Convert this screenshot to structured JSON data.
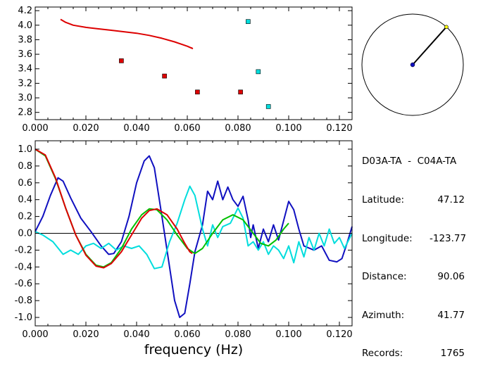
{
  "chart_data": [
    {
      "type": "scatter",
      "title": "",
      "xlabel": "",
      "ylabel": "",
      "xlim": [
        0.0,
        0.125
      ],
      "ylim": [
        2.7,
        4.25
      ],
      "x_ticks": [
        "0.000",
        "0.020",
        "0.040",
        "0.060",
        "0.080",
        "0.100",
        "0.120"
      ],
      "y_ticks": [
        "2.8",
        "3.0",
        "3.2",
        "3.4",
        "3.6",
        "3.8",
        "4.0",
        "4.2"
      ],
      "x_tick_values": [
        0,
        0.02,
        0.04,
        0.06,
        0.08,
        0.1,
        0.12
      ],
      "y_tick_values": [
        2.8,
        3.0,
        3.2,
        3.4,
        3.6,
        3.8,
        4.0,
        4.2
      ],
      "series": [
        {
          "type": "line",
          "color": "#dd0000",
          "points": [
            [
              0.01,
              4.08
            ],
            [
              0.012,
              4.04
            ],
            [
              0.015,
              4.0
            ],
            [
              0.02,
              3.97
            ],
            [
              0.025,
              3.95
            ],
            [
              0.03,
              3.93
            ],
            [
              0.035,
              3.91
            ],
            [
              0.04,
              3.89
            ],
            [
              0.045,
              3.86
            ],
            [
              0.05,
              3.82
            ],
            [
              0.055,
              3.77
            ],
            [
              0.06,
              3.71
            ],
            [
              0.062,
              3.68
            ],
            [
              0.0615,
              3.69
            ]
          ]
        },
        {
          "type": "scatter",
          "color": "#dd0000",
          "points": [
            [
              0.034,
              3.51
            ],
            [
              0.051,
              3.3
            ],
            [
              0.064,
              3.08
            ],
            [
              0.081,
              3.08
            ]
          ]
        },
        {
          "type": "scatter",
          "color": "#00dddd",
          "points": [
            [
              0.084,
              4.05
            ],
            [
              0.088,
              3.36
            ],
            [
              0.092,
              2.88
            ]
          ]
        }
      ]
    },
    {
      "type": "line",
      "title": "",
      "xlabel": "frequency (Hz)",
      "ylabel": "",
      "xlim": [
        0.0,
        0.125
      ],
      "ylim": [
        -1.1,
        1.1
      ],
      "x_ticks": [
        "0.000",
        "0.020",
        "0.040",
        "0.060",
        "0.080",
        "0.100",
        "0.120"
      ],
      "y_ticks": [
        "1.0",
        "0.8",
        "0.6",
        "0.4",
        "0.2",
        "0.0",
        "-0.2",
        "-0.4",
        "-0.6",
        "-0.8",
        "-1.0"
      ],
      "x_tick_values": [
        0,
        0.02,
        0.04,
        0.06,
        0.08,
        0.1,
        0.12
      ],
      "y_tick_values": [
        1.0,
        0.8,
        0.6,
        0.4,
        0.2,
        0.0,
        -0.2,
        -0.4,
        -0.6,
        -0.8,
        -1.0
      ],
      "zero_line": true,
      "series": [
        {
          "color": "#1010c0",
          "points": [
            [
              0.0,
              0.02
            ],
            [
              0.003,
              0.2
            ],
            [
              0.006,
              0.45
            ],
            [
              0.009,
              0.66
            ],
            [
              0.011,
              0.62
            ],
            [
              0.014,
              0.42
            ],
            [
              0.018,
              0.18
            ],
            [
              0.022,
              0.02
            ],
            [
              0.026,
              -0.15
            ],
            [
              0.029,
              -0.25
            ],
            [
              0.031,
              -0.24
            ],
            [
              0.034,
              -0.1
            ],
            [
              0.037,
              0.2
            ],
            [
              0.04,
              0.6
            ],
            [
              0.043,
              0.86
            ],
            [
              0.045,
              0.92
            ],
            [
              0.047,
              0.78
            ],
            [
              0.05,
              0.2
            ],
            [
              0.053,
              -0.4
            ],
            [
              0.055,
              -0.8
            ],
            [
              0.057,
              -1.0
            ],
            [
              0.059,
              -0.95
            ],
            [
              0.061,
              -0.6
            ],
            [
              0.063,
              -0.22
            ],
            [
              0.066,
              0.1
            ],
            [
              0.068,
              0.5
            ],
            [
              0.07,
              0.4
            ],
            [
              0.072,
              0.62
            ],
            [
              0.074,
              0.4
            ],
            [
              0.076,
              0.55
            ],
            [
              0.078,
              0.4
            ],
            [
              0.08,
              0.32
            ],
            [
              0.082,
              0.44
            ],
            [
              0.084,
              0.16
            ],
            [
              0.085,
              -0.05
            ],
            [
              0.086,
              0.1
            ],
            [
              0.088,
              -0.18
            ],
            [
              0.09,
              0.05
            ],
            [
              0.092,
              -0.1
            ],
            [
              0.094,
              0.1
            ],
            [
              0.096,
              -0.08
            ],
            [
              0.098,
              0.15
            ],
            [
              0.1,
              0.38
            ],
            [
              0.102,
              0.28
            ],
            [
              0.104,
              0.05
            ],
            [
              0.106,
              -0.15
            ],
            [
              0.11,
              -0.2
            ],
            [
              0.113,
              -0.15
            ],
            [
              0.116,
              -0.32
            ],
            [
              0.119,
              -0.34
            ],
            [
              0.121,
              -0.3
            ],
            [
              0.123,
              -0.12
            ],
            [
              0.125,
              0.08
            ]
          ]
        },
        {
          "color": "#00dddd",
          "points": [
            [
              0.0,
              0.02
            ],
            [
              0.003,
              -0.02
            ],
            [
              0.007,
              -0.1
            ],
            [
              0.011,
              -0.25
            ],
            [
              0.014,
              -0.2
            ],
            [
              0.017,
              -0.25
            ],
            [
              0.02,
              -0.15
            ],
            [
              0.023,
              -0.12
            ],
            [
              0.026,
              -0.18
            ],
            [
              0.029,
              -0.12
            ],
            [
              0.032,
              -0.2
            ],
            [
              0.035,
              -0.15
            ],
            [
              0.038,
              -0.18
            ],
            [
              0.041,
              -0.15
            ],
            [
              0.044,
              -0.25
            ],
            [
              0.047,
              -0.42
            ],
            [
              0.05,
              -0.4
            ],
            [
              0.053,
              -0.1
            ],
            [
              0.056,
              0.12
            ],
            [
              0.059,
              0.4
            ],
            [
              0.061,
              0.56
            ],
            [
              0.063,
              0.45
            ],
            [
              0.066,
              0.05
            ],
            [
              0.068,
              -0.15
            ],
            [
              0.07,
              0.1
            ],
            [
              0.072,
              -0.05
            ],
            [
              0.074,
              0.08
            ],
            [
              0.077,
              0.12
            ],
            [
              0.08,
              0.3
            ],
            [
              0.082,
              0.18
            ],
            [
              0.084,
              -0.15
            ],
            [
              0.086,
              -0.1
            ],
            [
              0.088,
              -0.2
            ],
            [
              0.09,
              -0.1
            ],
            [
              0.092,
              -0.25
            ],
            [
              0.094,
              -0.15
            ],
            [
              0.096,
              -0.2
            ],
            [
              0.098,
              -0.3
            ],
            [
              0.1,
              -0.15
            ],
            [
              0.102,
              -0.35
            ],
            [
              0.104,
              -0.1
            ],
            [
              0.106,
              -0.28
            ],
            [
              0.108,
              -0.05
            ],
            [
              0.11,
              -0.2
            ],
            [
              0.112,
              0.0
            ],
            [
              0.114,
              -0.15
            ],
            [
              0.116,
              0.05
            ],
            [
              0.118,
              -0.12
            ],
            [
              0.12,
              -0.05
            ],
            [
              0.122,
              -0.18
            ],
            [
              0.125,
              0.0
            ]
          ]
        },
        {
          "color": "#00c000",
          "points": [
            [
              0.0,
              1.0
            ],
            [
              0.004,
              0.92
            ],
            [
              0.008,
              0.65
            ],
            [
              0.012,
              0.3
            ],
            [
              0.016,
              -0.02
            ],
            [
              0.02,
              -0.25
            ],
            [
              0.024,
              -0.38
            ],
            [
              0.027,
              -0.4
            ],
            [
              0.03,
              -0.35
            ],
            [
              0.034,
              -0.18
            ],
            [
              0.038,
              0.05
            ],
            [
              0.042,
              0.22
            ],
            [
              0.045,
              0.29
            ],
            [
              0.048,
              0.28
            ],
            [
              0.052,
              0.16
            ],
            [
              0.056,
              -0.02
            ],
            [
              0.06,
              -0.18
            ],
            [
              0.063,
              -0.24
            ],
            [
              0.066,
              -0.18
            ],
            [
              0.07,
              0.0
            ],
            [
              0.074,
              0.16
            ],
            [
              0.078,
              0.22
            ],
            [
              0.082,
              0.16
            ],
            [
              0.086,
              0.0
            ],
            [
              0.089,
              -0.12
            ],
            [
              0.092,
              -0.15
            ],
            [
              0.095,
              -0.08
            ],
            [
              0.098,
              0.05
            ],
            [
              0.1,
              0.12
            ]
          ]
        },
        {
          "color": "#dd0000",
          "points": [
            [
              0.0,
              1.0
            ],
            [
              0.004,
              0.93
            ],
            [
              0.008,
              0.66
            ],
            [
              0.012,
              0.3
            ],
            [
              0.016,
              -0.02
            ],
            [
              0.02,
              -0.26
            ],
            [
              0.024,
              -0.39
            ],
            [
              0.027,
              -0.41
            ],
            [
              0.03,
              -0.36
            ],
            [
              0.034,
              -0.22
            ],
            [
              0.038,
              -0.02
            ],
            [
              0.042,
              0.18
            ],
            [
              0.045,
              0.27
            ],
            [
              0.048,
              0.29
            ],
            [
              0.052,
              0.22
            ],
            [
              0.056,
              0.05
            ],
            [
              0.059,
              -0.12
            ],
            [
              0.061,
              -0.22
            ],
            [
              0.062,
              -0.24
            ]
          ]
        }
      ]
    }
  ],
  "azimuth_plot": {
    "azimuth_deg": 41.77,
    "line_color": "#000000",
    "center_marker_color": "#1010c0",
    "end_marker_color": "#ffff00"
  },
  "info": {
    "pair": "D03A-TA  -  C04A-TA",
    "rows": [
      {
        "label": "Latitude:",
        "value": "47.12"
      },
      {
        "label": "Longitude:",
        "value": "-123.77"
      },
      {
        "label": "Distance:",
        "value": "90.06"
      },
      {
        "label": "Azimuth:",
        "value": "41.77"
      },
      {
        "label": "Records:",
        "value": "1765"
      }
    ]
  }
}
